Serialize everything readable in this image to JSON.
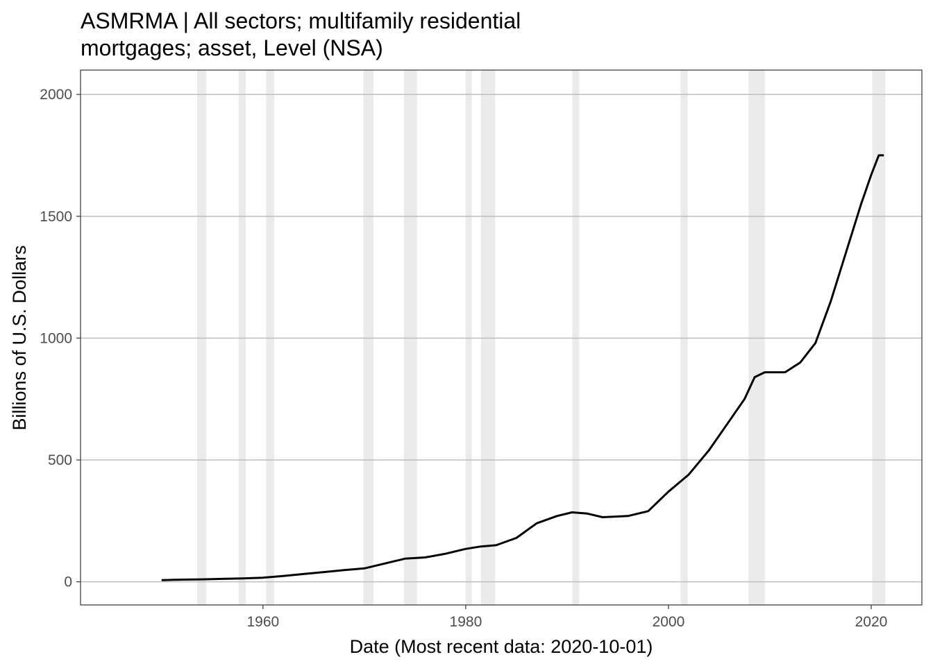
{
  "chart_data": {
    "type": "line",
    "title_lines": [
      "ASMRMA | All sectors; multifamily residential",
      "mortgages; asset, Level (NSA)"
    ],
    "xlabel": "Date (Most recent data: 2020-10-01)",
    "ylabel": "Billions of U.S. Dollars",
    "xlim": [
      1942.0,
      2025.0
    ],
    "ylim": [
      -95,
      2100
    ],
    "x_ticks": [
      1960,
      1980,
      2000,
      2020
    ],
    "y_ticks": [
      0,
      500,
      1000,
      1500,
      2000
    ],
    "grid": "horizontal major",
    "legend": "none",
    "recessions": [
      [
        1953.5,
        1954.4
      ],
      [
        1957.6,
        1958.3
      ],
      [
        1960.3,
        1961.1
      ],
      [
        1969.9,
        1970.9
      ],
      [
        1973.9,
        1975.2
      ],
      [
        1980.0,
        1980.6
      ],
      [
        1981.5,
        1982.9
      ],
      [
        1990.5,
        1991.2
      ],
      [
        2001.2,
        2001.9
      ],
      [
        2007.9,
        2009.5
      ],
      [
        2020.1,
        2021.4
      ]
    ],
    "series": [
      {
        "color": "#000000",
        "x": [
          1950.0,
          1952.0,
          1954.0,
          1956.0,
          1958.0,
          1960.0,
          1962.0,
          1964.0,
          1966.0,
          1968.0,
          1970.0,
          1972.0,
          1974.0,
          1976.0,
          1978.0,
          1980.0,
          1981.5,
          1983.0,
          1985.0,
          1987.0,
          1989.0,
          1990.5,
          1992.0,
          1993.5,
          1996.0,
          1998.0,
          2000.0,
          2002.0,
          2004.0,
          2006.0,
          2007.5,
          2008.5,
          2009.5,
          2010.5,
          2011.5,
          2013.0,
          2014.5,
          2016.0,
          2017.5,
          2019.0,
          2020.0,
          2020.75,
          2021.25
        ],
        "values": [
          7,
          9,
          10,
          12,
          14,
          17,
          24,
          32,
          40,
          48,
          55,
          75,
          95,
          100,
          115,
          135,
          145,
          150,
          180,
          240,
          270,
          285,
          280,
          265,
          270,
          290,
          370,
          440,
          540,
          660,
          750,
          840,
          860,
          860,
          860,
          900,
          980,
          1150,
          1350,
          1550,
          1670,
          1750,
          1750
        ]
      }
    ]
  }
}
